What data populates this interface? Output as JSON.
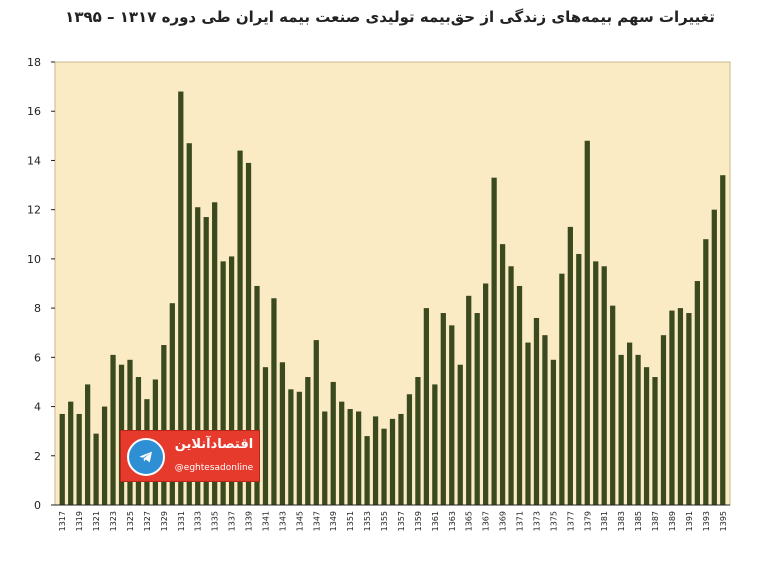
{
  "chart_data": {
    "type": "bar",
    "title": "تغییرات سهم بیمه‌های زندگی از حق‌بیمه تولیدی صنعت بیمه ایران طی دوره ۱۳۱۷ – ۱۳۹۵",
    "xlabel": "",
    "ylabel": "",
    "ylim": [
      0,
      18
    ],
    "yticks": [
      0,
      2,
      4,
      6,
      8,
      10,
      12,
      14,
      16,
      18
    ],
    "grid": false,
    "categories": [
      1317,
      1318,
      1319,
      1320,
      1321,
      1322,
      1323,
      1324,
      1325,
      1326,
      1327,
      1328,
      1329,
      1330,
      1331,
      1332,
      1333,
      1334,
      1335,
      1336,
      1337,
      1338,
      1339,
      1340,
      1341,
      1342,
      1343,
      1344,
      1345,
      1346,
      1347,
      1348,
      1349,
      1350,
      1351,
      1352,
      1353,
      1354,
      1355,
      1356,
      1357,
      1358,
      1359,
      1360,
      1361,
      1362,
      1363,
      1364,
      1365,
      1366,
      1367,
      1368,
      1369,
      1370,
      1371,
      1372,
      1373,
      1374,
      1375,
      1376,
      1377,
      1378,
      1379,
      1380,
      1381,
      1382,
      1383,
      1384,
      1385,
      1386,
      1387,
      1388,
      1389,
      1390,
      1391,
      1392,
      1393,
      1394,
      1395
    ],
    "xtick_labels": [
      "1317",
      "1319",
      "1321",
      "1323",
      "1325",
      "1327",
      "1329",
      "1331",
      "1333",
      "1335",
      "1337",
      "1339",
      "1341",
      "1343",
      "1345",
      "1347",
      "1349",
      "1351",
      "1353",
      "1355",
      "1357",
      "1359",
      "1361",
      "1363",
      "1365",
      "1367",
      "1369",
      "1371",
      "1373",
      "1375",
      "1377",
      "1379",
      "1381",
      "1383",
      "1385",
      "1387",
      "1389",
      "1391",
      "1393",
      "1395"
    ],
    "values": [
      3.7,
      4.2,
      3.7,
      4.9,
      2.9,
      4.0,
      6.1,
      5.7,
      5.9,
      5.2,
      4.3,
      5.1,
      6.5,
      8.2,
      16.8,
      14.7,
      12.1,
      11.7,
      12.3,
      9.9,
      10.1,
      14.4,
      13.9,
      8.9,
      5.6,
      8.4,
      5.8,
      4.7,
      4.6,
      5.2,
      6.7,
      3.8,
      5.0,
      4.2,
      3.9,
      3.8,
      2.8,
      3.6,
      3.1,
      3.5,
      3.7,
      4.5,
      5.2,
      8.0,
      4.9,
      7.8,
      7.3,
      5.7,
      8.5,
      7.8,
      9.0,
      13.3,
      10.6,
      9.7,
      8.9,
      6.6,
      7.6,
      6.9,
      5.9,
      9.4,
      11.3,
      10.2,
      14.8,
      9.9,
      9.7,
      8.1,
      6.1,
      6.6,
      6.1,
      5.6,
      5.2,
      6.9,
      7.9,
      8.0,
      7.8,
      9.1,
      10.8,
      12.0,
      13.4
    ],
    "colors": {
      "bar": "#3a4a1e",
      "plot_background": "#fbebc4",
      "plot_border": "#c8b98e",
      "axis": "#222222"
    }
  },
  "watermark": {
    "name": "اقتصادآنلاین",
    "handle": "@eghtesadonline",
    "icon": "telegram-plane-icon",
    "colors": {
      "background": "#e63a2c",
      "icon_circle": "#2f8fd4"
    }
  }
}
